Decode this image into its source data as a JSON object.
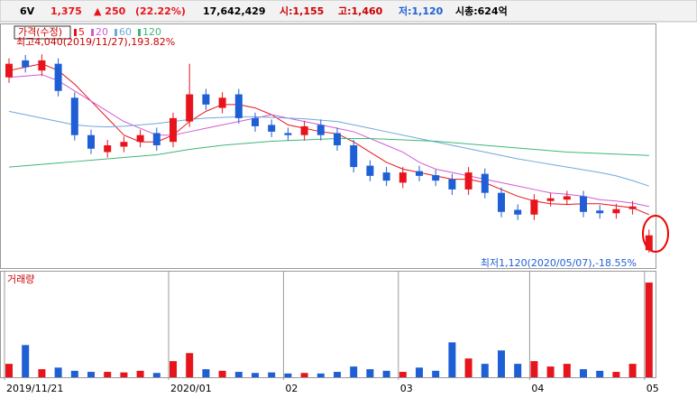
{
  "header": {
    "code": "6V",
    "price": "1,375",
    "change": "▲ 250",
    "change_pct": "(22.22%)",
    "volume": "17,642,429",
    "open": "시:1,155",
    "high": "고:1,460",
    "low": "저:1,120",
    "market_cap": "시총:624억"
  },
  "chart_data": {
    "type": "candlestick",
    "legend_title": "가격(수정)",
    "volume_title": "거래량",
    "annotations": [
      "최고4,040(2019/11/27),193.82%",
      "최저1,120(2020/05/07),-18.55%"
    ],
    "categories": [
      "2019/11/21",
      null,
      null,
      null,
      null,
      null,
      null,
      null,
      null,
      null,
      "2020/01",
      null,
      null,
      null,
      null,
      null,
      null,
      "02",
      null,
      null,
      null,
      null,
      null,
      null,
      "03",
      null,
      null,
      null,
      null,
      null,
      null,
      null,
      "04",
      null,
      null,
      null,
      null,
      null,
      null,
      "05"
    ],
    "open": [
      3700,
      3950,
      3800,
      3900,
      3400,
      2850,
      2600,
      2680,
      2750,
      2880,
      2750,
      3050,
      3450,
      3250,
      3450,
      3100,
      3000,
      2880,
      2850,
      3000,
      2880,
      2700,
      2400,
      2300,
      2150,
      2320,
      2260,
      2200,
      2050,
      2280,
      2000,
      1750,
      1680,
      1880,
      1900,
      1950,
      1740,
      1700,
      1760,
      1155
    ],
    "high": [
      3980,
      4030,
      4040,
      3980,
      3480,
      2930,
      2780,
      2830,
      2930,
      2960,
      3180,
      3900,
      3530,
      3480,
      3530,
      3180,
      3080,
      2960,
      3060,
      3080,
      2960,
      2780,
      2480,
      2380,
      2380,
      2400,
      2340,
      2280,
      2380,
      2360,
      2080,
      1830,
      1980,
      2000,
      2030,
      2030,
      1820,
      1840,
      1880,
      1460
    ],
    "low": [
      3620,
      3770,
      3720,
      3420,
      2770,
      2570,
      2520,
      2600,
      2670,
      2620,
      2670,
      2970,
      3220,
      3170,
      3020,
      2900,
      2820,
      2770,
      2770,
      2770,
      2620,
      2300,
      2170,
      2100,
      2070,
      2170,
      2100,
      1970,
      1970,
      1920,
      1640,
      1600,
      1600,
      1800,
      1820,
      1640,
      1620,
      1620,
      1680,
      1120
    ],
    "close": [
      3900,
      3850,
      3950,
      3500,
      2850,
      2650,
      2700,
      2750,
      2850,
      2700,
      3100,
      3450,
      3300,
      3400,
      3100,
      2980,
      2900,
      2850,
      2980,
      2850,
      2700,
      2380,
      2250,
      2180,
      2300,
      2250,
      2180,
      2050,
      2300,
      2000,
      1720,
      1680,
      1900,
      1920,
      1950,
      1720,
      1700,
      1760,
      1800,
      1375
    ],
    "up_color": "#e8141c",
    "down_color": "#1f5fd6",
    "series": [
      {
        "name": "5",
        "color": "#e8141c",
        "values": [
          3800,
          3850,
          3900,
          3800,
          3600,
          3350,
          3100,
          2850,
          2750,
          2750,
          2850,
          3050,
          3200,
          3300,
          3300,
          3250,
          3150,
          3000,
          2950,
          2900,
          2870,
          2750,
          2600,
          2450,
          2350,
          2300,
          2250,
          2200,
          2200,
          2150,
          2050,
          1950,
          1880,
          1840,
          1830,
          1840,
          1840,
          1810,
          1780,
          1680
        ]
      },
      {
        "name": "20",
        "color": "#d45ad4",
        "values": [
          3700,
          3720,
          3740,
          3650,
          3500,
          3350,
          3200,
          3050,
          2950,
          2850,
          2850,
          2900,
          2950,
          3000,
          3050,
          3100,
          3150,
          3100,
          3050,
          3000,
          2950,
          2900,
          2800,
          2700,
          2600,
          2450,
          2350,
          2300,
          2250,
          2200,
          2150,
          2100,
          2050,
          2000,
          1980,
          1950,
          1900,
          1880,
          1850,
          1800
        ]
      },
      {
        "name": "60",
        "color": "#6fa8dc",
        "values": [
          3200,
          3150,
          3100,
          3050,
          3000,
          2980,
          2970,
          2980,
          3000,
          3020,
          3050,
          3080,
          3100,
          3110,
          3120,
          3120,
          3110,
          3100,
          3090,
          3070,
          3050,
          3000,
          2950,
          2900,
          2850,
          2800,
          2750,
          2700,
          2650,
          2600,
          2550,
          2500,
          2460,
          2420,
          2380,
          2340,
          2300,
          2250,
          2180,
          2100
        ]
      },
      {
        "name": "120",
        "color": "#3cb878",
        "values": [
          2380,
          2400,
          2420,
          2440,
          2460,
          2480,
          2500,
          2520,
          2540,
          2560,
          2600,
          2640,
          2670,
          2700,
          2720,
          2740,
          2760,
          2770,
          2780,
          2790,
          2800,
          2800,
          2800,
          2790,
          2780,
          2770,
          2760,
          2740,
          2720,
          2700,
          2680,
          2660,
          2640,
          2620,
          2600,
          2590,
          2580,
          2570,
          2560,
          2550
        ]
      }
    ],
    "volumes": [
      2500000,
      6000000,
      1500000,
      1800000,
      1200000,
      1000000,
      1000000,
      900000,
      1200000,
      800000,
      3000000,
      4500000,
      1500000,
      1200000,
      1000000,
      800000,
      900000,
      700000,
      800000,
      700000,
      1000000,
      2000000,
      1500000,
      1200000,
      1000000,
      1800000,
      1200000,
      6500000,
      3500000,
      2500000,
      5000000,
      2500000,
      3000000,
      2000000,
      2500000,
      1500000,
      1200000,
      1000000,
      2500000,
      17642429
    ],
    "ylim": [
      920,
      4440
    ],
    "vlim": [
      0,
      19000000
    ]
  }
}
